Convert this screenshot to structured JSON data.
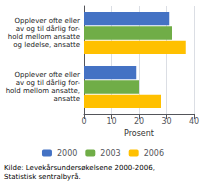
{
  "chart_data": {
    "type": "bar",
    "orientation": "horizontal",
    "categories": [
      "Opplever ofte eller\nav og til dårlig for-\nhold mellom ansatte\nog ledelse, ansatte",
      "Opplever ofte eller\nav og til dårlig for-\nhold mellom ansatte,\nansatte"
    ],
    "series": [
      {
        "name": "2000",
        "color": "#4472C4",
        "values": [
          31,
          19
        ]
      },
      {
        "name": "2003",
        "color": "#70AD47",
        "values": [
          32,
          20
        ]
      },
      {
        "name": "2006",
        "color": "#FFC000",
        "values": [
          37,
          28
        ]
      }
    ],
    "xlabel": "Prosent",
    "xlim": [
      0,
      40
    ],
    "xticks": [
      0,
      10,
      20,
      30,
      40
    ],
    "grid": true,
    "legend": "bottom",
    "annotations": [
      "Kilde: Levekårsundersøkelsene 2000-2006,\nStatistisk sentralbyrå."
    ]
  }
}
